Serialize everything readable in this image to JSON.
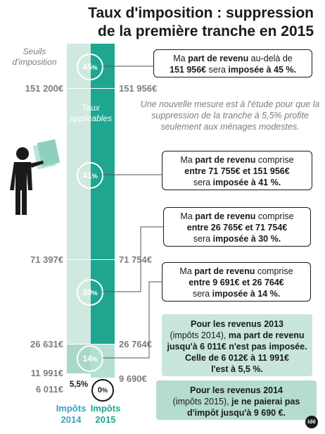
{
  "title_line1": "Taux d'imposition : suppression",
  "title_line2": "de la première tranche en 2015",
  "seuils_label": "Seuils d'imposition",
  "taux_label": "Taux applicables",
  "thresholds_2014": [
    "151 200€",
    "71 397€",
    "26 631€",
    "11 991€",
    "6 011€"
  ],
  "thresholds_2015": [
    "151 956€",
    "71 754€",
    "26 764€",
    "9 690€"
  ],
  "rates_2015": [
    {
      "main": "45",
      "unit": "%"
    },
    {
      "main": "41",
      "unit": "%"
    },
    {
      "main": "30",
      "unit": "%"
    },
    {
      "main": "14",
      "unit": "%"
    },
    {
      "main": "0",
      "unit": "%"
    }
  ],
  "rate_2014_extra": "5,5%",
  "note": "Une nouvelle mesure est à l'étude pour que la suppression de la tranche à 5,5% profite seulement aux ménages modestes.",
  "boxes": {
    "b45": {
      "t1": "Ma ",
      "b1": "part de revenu",
      "t2": " au-delà de",
      "b2": "151 956€",
      "t3": " sera ",
      "b3": "imposée à 45 %."
    },
    "b41": {
      "t1": "Ma ",
      "b1": "part de revenu",
      "t2": " comprise",
      "b2": "entre 71 755€ et 151 956€",
      "t3": "sera ",
      "b3": "imposée à 41 %."
    },
    "b30": {
      "t1": "Ma ",
      "b1": "part de revenu",
      "t2": " comprise",
      "b2": "entre 26 765€ et 71 754€",
      "t3": "sera ",
      "b3": "imposée à 30 %."
    },
    "b14": {
      "t1": "Ma ",
      "b1": "part de revenu",
      "t2": " comprise",
      "b2": "entre 9 691€ et 26 764€",
      "t3": "sera ",
      "b3": "imposée à 14 %."
    },
    "b2013": {
      "b1": "Pour les revenus 2013",
      "t1": "(impôts 2014), ",
      "b2": "ma part de revenu",
      "b3": "jusqu'à 6 011€ n'est pas imposée.",
      "b4": "Celle de 6 012€  à 11 991€",
      "b5": "l'est à 5,5 %."
    },
    "b2014": {
      "b1": "Pour les revenus 2014",
      "t1": "(impôts 2015), ",
      "b2": "je ne paierai pas",
      "b3": "d'impôt jusqu'à 9 690 €."
    }
  },
  "foot_2014": "Impôts 2014",
  "foot_2015": "Impôts 2015",
  "foot_2014_color": "#3aa0c4",
  "foot_2015_color": "#1ea691",
  "logo": "idé"
}
